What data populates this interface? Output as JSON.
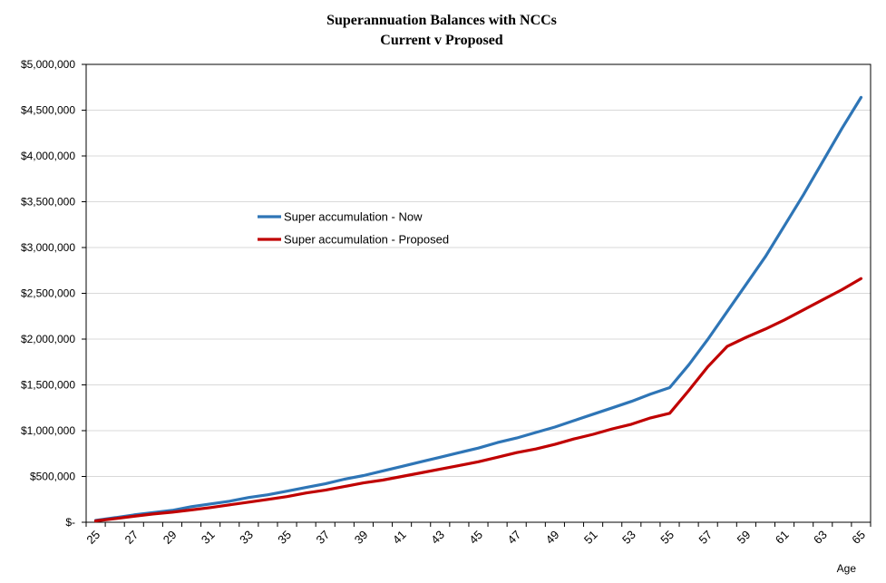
{
  "chart_data": {
    "type": "line",
    "title": [
      "Superannuation Balances with NCCs",
      "Current v Proposed"
    ],
    "xlabel": "Age",
    "ylabel": "",
    "x": [
      25,
      26,
      27,
      28,
      29,
      30,
      31,
      32,
      33,
      34,
      35,
      36,
      37,
      38,
      39,
      40,
      41,
      42,
      43,
      44,
      45,
      46,
      47,
      48,
      49,
      50,
      51,
      52,
      53,
      54,
      55,
      56,
      57,
      58,
      59,
      60,
      61,
      62,
      63,
      64,
      65
    ],
    "x_tick_labels": [
      "25",
      "27",
      "29",
      "31",
      "33",
      "35",
      "37",
      "39",
      "41",
      "43",
      "45",
      "47",
      "49",
      "51",
      "53",
      "55",
      "57",
      "59",
      "61",
      "63",
      "65"
    ],
    "ylim": [
      0,
      5000000
    ],
    "y_tick_values": [
      0,
      500000,
      1000000,
      1500000,
      2000000,
      2500000,
      3000000,
      3500000,
      4000000,
      4500000,
      5000000
    ],
    "y_tick_labels": [
      "$-",
      "$500,000",
      "$1,000,000",
      "$1,500,000",
      "$2,000,000",
      "$2,500,000",
      "$3,000,000",
      "$3,500,000",
      "$4,000,000",
      "$4,500,000",
      "$5,000,000"
    ],
    "grid": true,
    "legend_position": "center-left",
    "series": [
      {
        "name": "Super accumulation - Now",
        "color": "#2E75B6",
        "values": [
          20000,
          50000,
          80000,
          105000,
          130000,
          170000,
          200000,
          230000,
          270000,
          300000,
          340000,
          380000,
          420000,
          470000,
          510000,
          560000,
          610000,
          660000,
          710000,
          760000,
          810000,
          870000,
          920000,
          980000,
          1040000,
          1110000,
          1180000,
          1250000,
          1320000,
          1400000,
          1470000,
          1720000,
          2000000,
          2300000,
          2600000,
          2900000,
          3240000,
          3580000,
          3940000,
          4300000,
          4640000
        ]
      },
      {
        "name": "Super accumulation - Proposed",
        "color": "#C00000",
        "values": [
          15000,
          40000,
          65000,
          90000,
          110000,
          135000,
          160000,
          190000,
          220000,
          250000,
          280000,
          320000,
          350000,
          390000,
          430000,
          460000,
          500000,
          540000,
          580000,
          620000,
          660000,
          710000,
          760000,
          800000,
          850000,
          910000,
          960000,
          1020000,
          1070000,
          1140000,
          1190000,
          1440000,
          1700000,
          1920000,
          2020000,
          2110000,
          2210000,
          2320000,
          2430000,
          2540000,
          2660000
        ]
      }
    ]
  }
}
